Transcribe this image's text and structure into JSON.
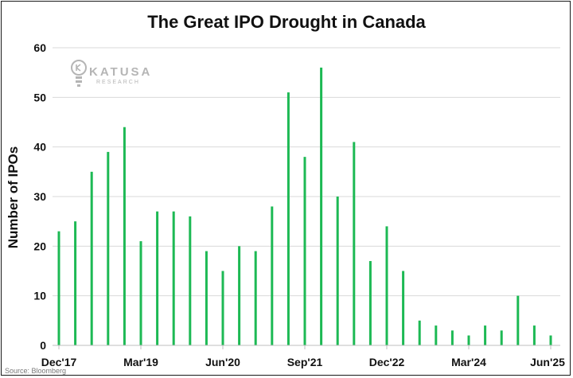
{
  "chart_data": {
    "type": "bar",
    "title": "The Great IPO Drought in Canada",
    "ylabel": "Number of IPOs",
    "xlabel": "",
    "ylim": [
      0,
      60
    ],
    "yticks": [
      0,
      10,
      20,
      30,
      40,
      50,
      60
    ],
    "xtick_labels": [
      "Dec'17",
      "Mar'19",
      "Jun'20",
      "Sep'21",
      "Dec'22",
      "Mar'24",
      "Jun'25"
    ],
    "categories": [
      "Dec'17",
      "Mar'18",
      "Jun'18",
      "Sep'18",
      "Dec'18",
      "Mar'19",
      "Jun'19",
      "Sep'19",
      "Dec'19",
      "Mar'20",
      "Jun'20",
      "Sep'20",
      "Dec'20",
      "Mar'21",
      "Jun'21",
      "Sep'21",
      "Dec'21",
      "Mar'22",
      "Jun'22",
      "Sep'22",
      "Dec'22",
      "Mar'23",
      "Jun'23",
      "Sep'23",
      "Dec'23",
      "Mar'24",
      "Jun'24",
      "Sep'24",
      "Dec'24",
      "Mar'25",
      "Jun'25"
    ],
    "values": [
      23,
      25,
      35,
      39,
      44,
      21,
      27,
      27,
      26,
      19,
      15,
      20,
      19,
      28,
      51,
      38,
      56,
      30,
      41,
      17,
      24,
      15,
      5,
      4,
      3,
      2,
      4,
      3,
      10,
      4,
      2
    ],
    "bar_color": "#1db954",
    "grid": true,
    "gridline_color": "#d9d9d9"
  },
  "logo": {
    "name": "KATUSA",
    "sub": "RESEARCH"
  },
  "source": "Source: Bloomberg"
}
